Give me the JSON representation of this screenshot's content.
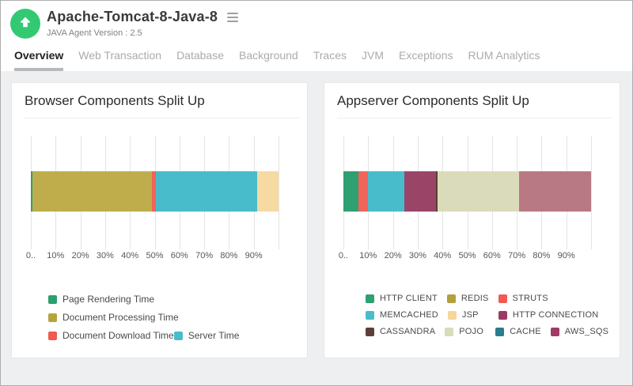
{
  "header": {
    "title": "Apache-Tomcat-8-Java-8",
    "subtitle": "JAVA Agent Version : 2.5",
    "avatar_icon": "arrow-up-icon",
    "menu_icon": "hamburger-icon",
    "avatar_color": "#33c973"
  },
  "tabs": [
    {
      "label": "Overview",
      "active": true
    },
    {
      "label": "Web Transaction",
      "active": false
    },
    {
      "label": "Database",
      "active": false
    },
    {
      "label": "Background",
      "active": false
    },
    {
      "label": "Traces",
      "active": false
    },
    {
      "label": "JVM",
      "active": false
    },
    {
      "label": "Exceptions",
      "active": false
    },
    {
      "label": "RUM Analytics",
      "active": false
    }
  ],
  "colors": {
    "content_background": "#edeff1",
    "card_background": "#ffffff",
    "gridline": "#e4e4e4",
    "active_tab_underline": "#b9b9b9"
  },
  "chart_data": [
    {
      "type": "bar",
      "variant": "horizontal-stacked-percent",
      "title": "Browser Components Split Up",
      "xlim": [
        0,
        100
      ],
      "grid": true,
      "x_ticks": [
        "0..",
        "10%",
        "20%",
        "30%",
        "40%",
        "50%",
        "60%",
        "70%",
        "80%",
        "90%"
      ],
      "segments": [
        {
          "label": "Page Rendering Time",
          "value_pct": 0.5,
          "color": "#2ea072"
        },
        {
          "label": "Document Processing Time",
          "value_pct": 48.5,
          "color": "#bfad4b"
        },
        {
          "label": "Document Download Time",
          "value_pct": 1.5,
          "color": "#f2635c"
        },
        {
          "label": "Server Time",
          "value_pct": 41.0,
          "color": "#49bccb"
        },
        {
          "label": "",
          "value_pct": 8.5,
          "color": "#f7d9a2"
        }
      ],
      "legend_position": "bottom-left",
      "legend_rows": [
        [
          {
            "label": "Page Rendering Time",
            "color": "#2ba06e"
          }
        ],
        [
          {
            "label": "Document Processing Time",
            "color": "#b5a33d"
          }
        ],
        [
          {
            "label": "Document Download Time",
            "color": "#f05a52"
          },
          {
            "label": "Server Time",
            "color": "#49bccb"
          }
        ]
      ]
    },
    {
      "type": "bar",
      "variant": "horizontal-stacked-percent",
      "title": "Appserver Components Split Up",
      "xlim": [
        0,
        100
      ],
      "grid": true,
      "x_ticks": [
        "0..",
        "10%",
        "20%",
        "30%",
        "40%",
        "50%",
        "60%",
        "70%",
        "80%",
        "90%"
      ],
      "segments": [
        {
          "label": "HTTP CLIENT",
          "value_pct": 6.0,
          "color": "#2ea072"
        },
        {
          "label": "STRUTS",
          "value_pct": 4.0,
          "color": "#f2635c"
        },
        {
          "label": "MEMCACHED",
          "value_pct": 14.5,
          "color": "#49bccb"
        },
        {
          "label": "HTTP CONNECTION",
          "value_pct": 13.0,
          "color": "#9a4568"
        },
        {
          "label": "CASSANDRA",
          "value_pct": 0.6,
          "color": "#5a4032"
        },
        {
          "label": "POJO",
          "value_pct": 32.7,
          "color": "#dadbba"
        },
        {
          "label": "AWS_SQS",
          "value_pct": 29.2,
          "color": "#b97984"
        }
      ],
      "legend_position": "bottom-left",
      "legend_rows": [
        [
          {
            "label": "HTTP CLIENT",
            "color": "#2ea072"
          },
          {
            "label": "REDIS",
            "color": "#b1a03b"
          },
          {
            "label": "STRUTS",
            "color": "#f25b52"
          }
        ],
        [
          {
            "label": "MEMCACHED",
            "color": "#49bccb"
          },
          {
            "label": "JSP",
            "color": "#f7d59b"
          },
          {
            "label": "HTTP CONNECTION",
            "color": "#9a3a64"
          }
        ],
        [
          {
            "label": "CASSANDRA",
            "color": "#5d3f38"
          },
          {
            "label": "POJO",
            "color": "#d9dbb9"
          },
          {
            "label": "CACHE",
            "color": "#2a7d8c"
          },
          {
            "label": "AWS_SQS",
            "color": "#a03a67"
          }
        ]
      ]
    }
  ]
}
